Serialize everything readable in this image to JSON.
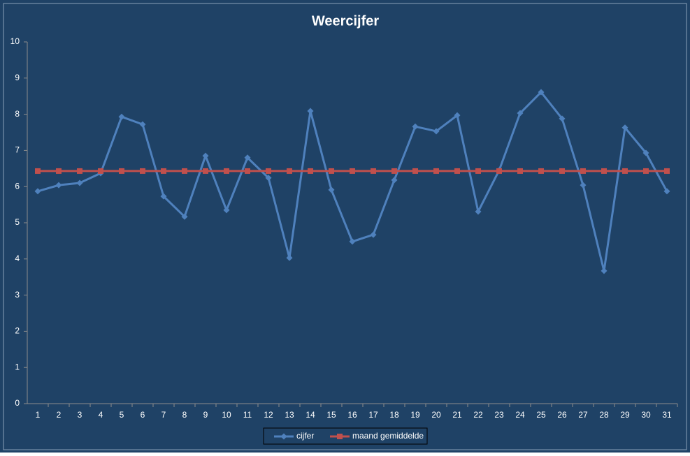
{
  "chart_data": {
    "type": "line",
    "title": "Weercijfer",
    "categories": [
      "1",
      "2",
      "3",
      "4",
      "5",
      "6",
      "7",
      "8",
      "9",
      "10",
      "11",
      "12",
      "13",
      "14",
      "15",
      "16",
      "17",
      "18",
      "19",
      "20",
      "21",
      "22",
      "23",
      "24",
      "25",
      "26",
      "27",
      "28",
      "29",
      "30",
      "31"
    ],
    "series": [
      {
        "name": "cijfer",
        "color": "#4f81bd",
        "marker": "diamond",
        "values": [
          5.87,
          6.04,
          6.1,
          6.37,
          7.93,
          7.72,
          5.73,
          5.17,
          6.85,
          5.35,
          6.8,
          6.24,
          4.03,
          8.09,
          5.91,
          4.48,
          4.67,
          6.18,
          7.66,
          7.53,
          7.97,
          5.31,
          6.45,
          8.03,
          8.61,
          7.88,
          6.04,
          3.67,
          7.63,
          6.93,
          5.87
        ]
      },
      {
        "name": "maand gemiddelde",
        "color": "#c0504d",
        "marker": "square",
        "values": [
          6.43,
          6.43,
          6.43,
          6.43,
          6.43,
          6.43,
          6.43,
          6.43,
          6.43,
          6.43,
          6.43,
          6.43,
          6.43,
          6.43,
          6.43,
          6.43,
          6.43,
          6.43,
          6.43,
          6.43,
          6.43,
          6.43,
          6.43,
          6.43,
          6.43,
          6.43,
          6.43,
          6.43,
          6.43,
          6.43,
          6.43
        ]
      }
    ],
    "ylim": [
      0,
      10
    ],
    "yticks": [
      0,
      1,
      2,
      3,
      4,
      5,
      6,
      7,
      8,
      9,
      10
    ],
    "grid": false,
    "legend": "bottom"
  }
}
